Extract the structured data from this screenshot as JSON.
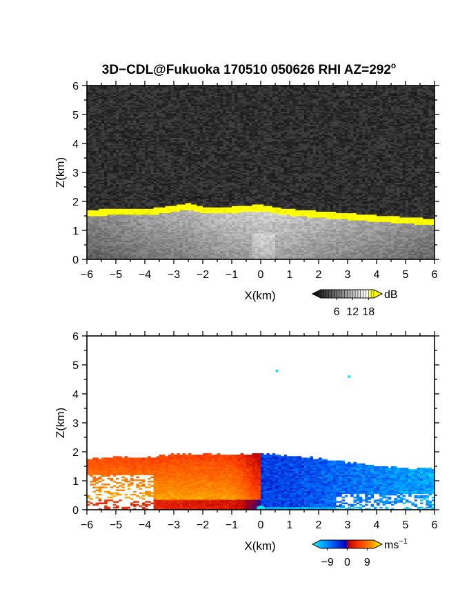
{
  "title": "3D−CDL@Fukuoka 170510 050626 RHI AZ=292",
  "title_superscript": "o",
  "chart_data": [
    {
      "type": "heatmap",
      "quantity": "reflectivity",
      "xlabel": "X(km)",
      "ylabel": "Z(km)",
      "xlim": [
        -6,
        6
      ],
      "ylim": [
        0,
        6
      ],
      "xticks": [
        "−6",
        "−5",
        "−4",
        "−3",
        "−2",
        "−1",
        "0",
        "1",
        "2",
        "3",
        "4",
        "5",
        "6"
      ],
      "yticks": [
        "0",
        "1",
        "2",
        "3",
        "4",
        "5",
        "6"
      ],
      "colorbar": {
        "unit": "dB",
        "ticks": [
          "6",
          "12",
          "18"
        ],
        "range": [
          0,
          20
        ],
        "colors": [
          "#000000",
          "#ffffff",
          "#ffff00"
        ]
      },
      "echo_top": [
        {
          "x": -6,
          "z": 1.65
        },
        {
          "x": -5,
          "z": 1.72
        },
        {
          "x": -4,
          "z": 1.7
        },
        {
          "x": -3.5,
          "z": 1.75
        },
        {
          "x": -3,
          "z": 1.82
        },
        {
          "x": -2.5,
          "z": 1.9
        },
        {
          "x": -2,
          "z": 1.78
        },
        {
          "x": -1,
          "z": 1.78
        },
        {
          "x": 0,
          "z": 1.85
        },
        {
          "x": 0.5,
          "z": 1.76
        },
        {
          "x": 1,
          "z": 1.7
        },
        {
          "x": 2,
          "z": 1.62
        },
        {
          "x": 3,
          "z": 1.55
        },
        {
          "x": 4,
          "z": 1.48
        },
        {
          "x": 5,
          "z": 1.42
        },
        {
          "x": 6,
          "z": 1.35
        }
      ]
    },
    {
      "type": "heatmap",
      "quantity": "doppler velocity",
      "xlabel": "X(km)",
      "ylabel": "Z(km)",
      "xlim": [
        -6,
        6
      ],
      "ylim": [
        0,
        6
      ],
      "xticks": [
        "−6",
        "−5",
        "−4",
        "−3",
        "−2",
        "−1",
        "0",
        "1",
        "2",
        "3",
        "4",
        "5",
        "6"
      ],
      "yticks": [
        "0",
        "1",
        "2",
        "3",
        "4",
        "5",
        "6"
      ],
      "colorbar": {
        "unit": "ms",
        "unit_superscript": "−1",
        "ticks": [
          "−9",
          "0",
          "9"
        ],
        "range": [
          -12,
          12
        ],
        "colors": [
          "#00ffff",
          "#0070ff",
          "#0000c0",
          "#c00000",
          "#ff4000",
          "#ff9000",
          "#ffff00"
        ]
      },
      "echo_top": [
        {
          "x": -6,
          "z": 1.72
        },
        {
          "x": -5,
          "z": 1.8
        },
        {
          "x": -4,
          "z": 1.78
        },
        {
          "x": -3,
          "z": 1.88
        },
        {
          "x": -2,
          "z": 1.9
        },
        {
          "x": -1,
          "z": 1.88
        },
        {
          "x": 0,
          "z": 1.92
        },
        {
          "x": 1,
          "z": 1.85
        },
        {
          "x": 2,
          "z": 1.75
        },
        {
          "x": 3,
          "z": 1.62
        },
        {
          "x": 4,
          "z": 1.5
        },
        {
          "x": 5,
          "z": 1.42
        },
        {
          "x": 6,
          "z": 1.38
        }
      ],
      "isolated_points": [
        {
          "x": 0.55,
          "z": 4.8
        },
        {
          "x": 3.05,
          "z": 4.6
        }
      ]
    }
  ]
}
